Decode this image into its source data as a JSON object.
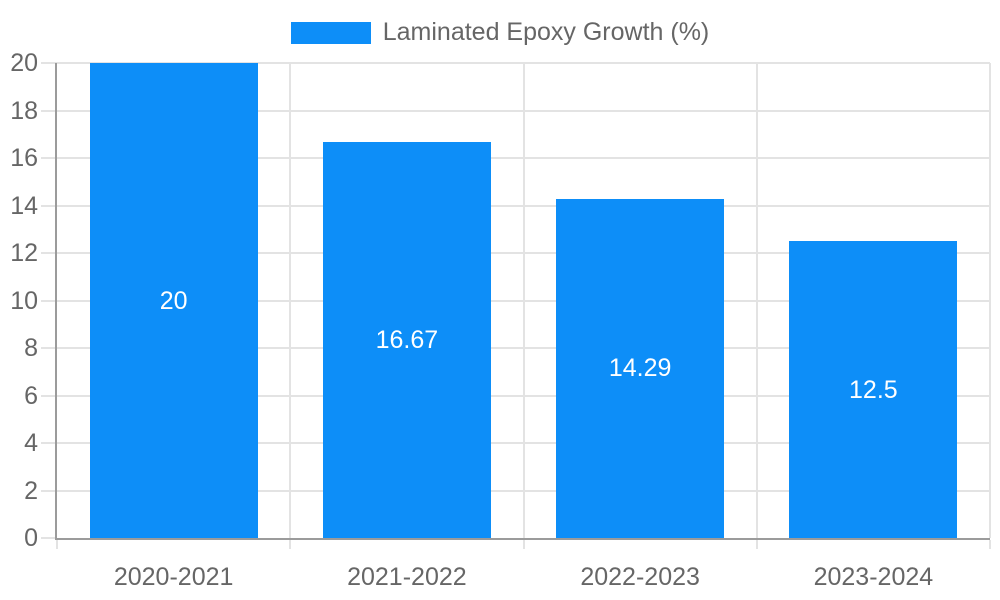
{
  "legend": {
    "label": "Laminated Epoxy Growth (%)"
  },
  "chart_data": {
    "type": "bar",
    "title": "",
    "series_name": "Laminated Epoxy Growth (%)",
    "categories": [
      "2020-2021",
      "2021-2022",
      "2022-2023",
      "2023-2024"
    ],
    "values": [
      20,
      16.67,
      14.29,
      12.5
    ],
    "bar_value_labels": [
      "20",
      "16.67",
      "14.29",
      "12.5"
    ],
    "xlabel": "",
    "ylabel": "",
    "ylim": [
      0,
      20
    ],
    "y_ticks": [
      0,
      2,
      4,
      6,
      8,
      10,
      12,
      14,
      16,
      18,
      20
    ],
    "y_tick_labels": [
      "0",
      "2",
      "4",
      "6",
      "8",
      "10",
      "12",
      "14",
      "16",
      "18",
      "20"
    ],
    "grid": true,
    "legend_position": "top",
    "colors": {
      "bar": "#0d8ef8",
      "grid": "#e3e3e3",
      "axis": "#9b9b9b",
      "tick_text": "#666666",
      "data_label": "#ffffff",
      "background": "#ffffff"
    }
  }
}
